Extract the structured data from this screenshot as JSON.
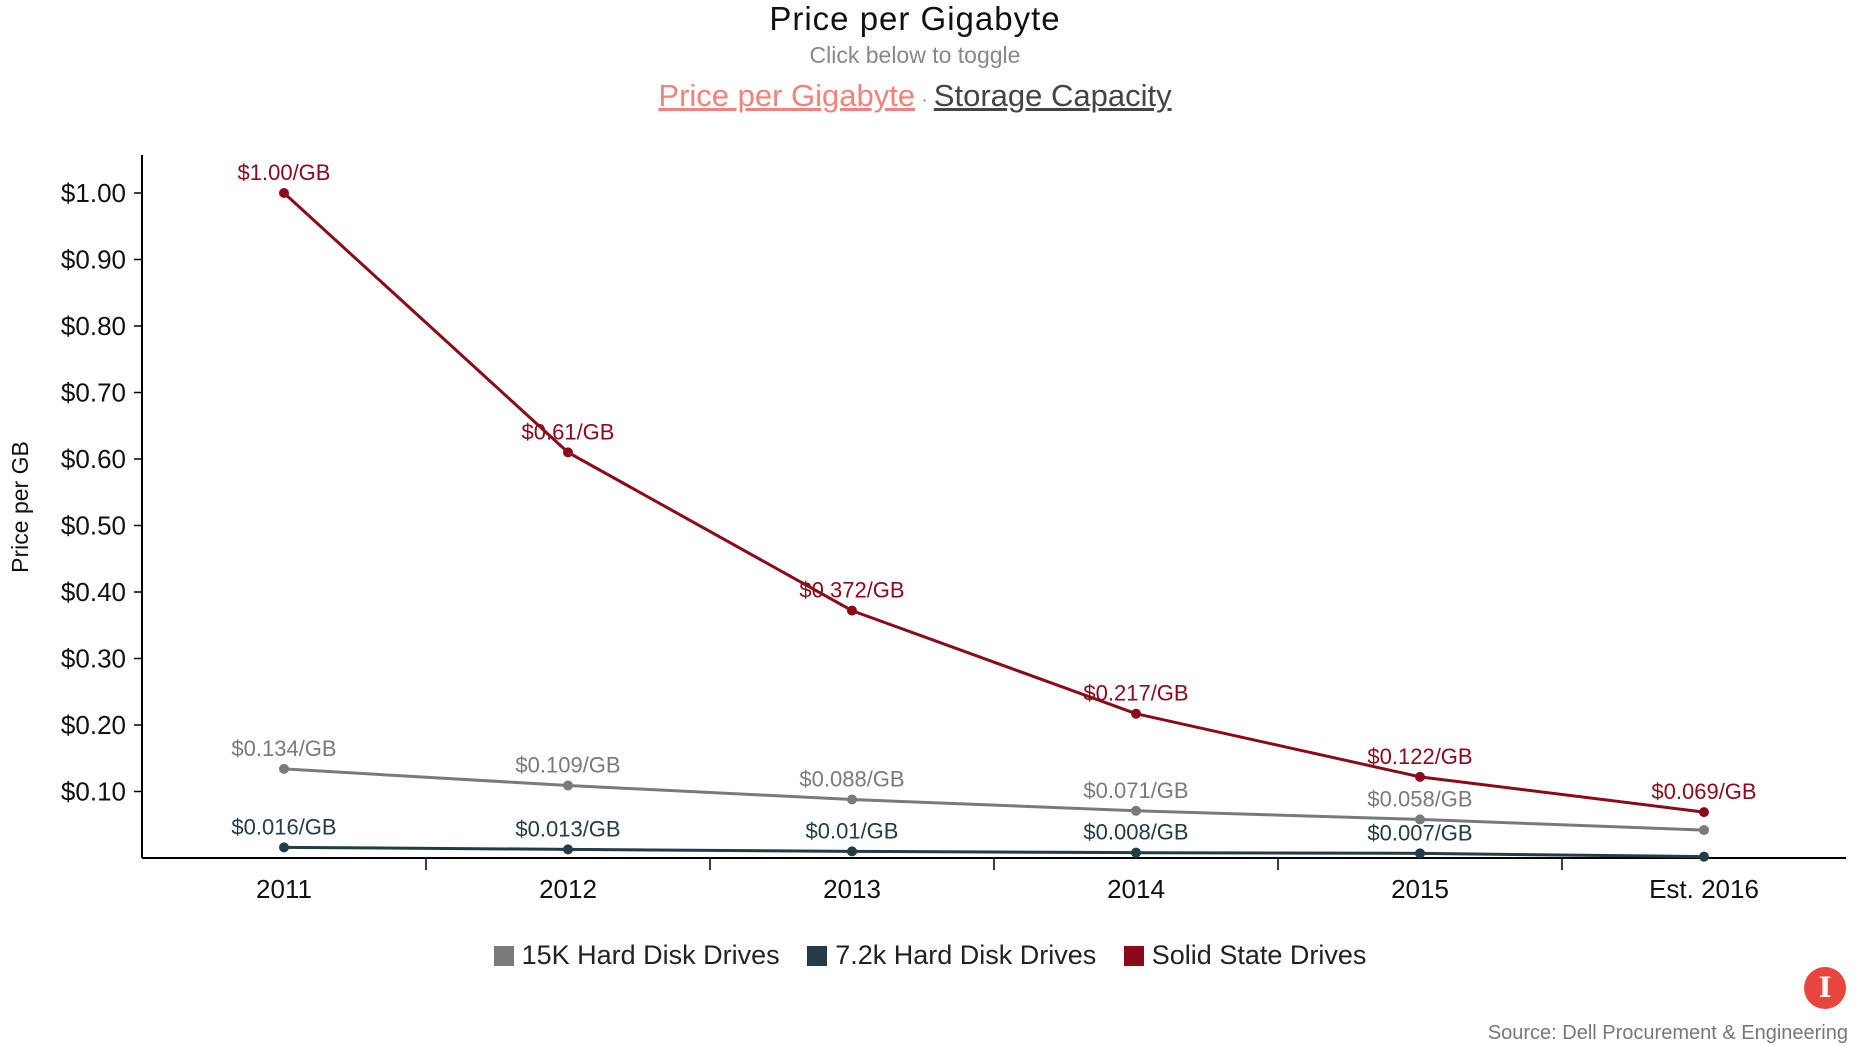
{
  "header": {
    "title": "Price per Gigabyte",
    "subtitle": "Click below to toggle",
    "toggles": [
      {
        "label": "Price per Gigabyte",
        "active": true
      },
      {
        "label": "Storage Capacity",
        "active": false
      }
    ],
    "separator": "·"
  },
  "chart_data": {
    "type": "line",
    "title": "Price per Gigabyte",
    "ylabel": "Price per GB",
    "xlabel": "",
    "categories": [
      "2011",
      "2012",
      "2013",
      "2014",
      "2015",
      "Est. 2016"
    ],
    "ylim": [
      0,
      1.05
    ],
    "yticks": [
      0.1,
      0.2,
      0.3,
      0.4,
      0.5,
      0.6,
      0.7,
      0.8,
      0.9,
      1.0
    ],
    "ytick_labels": [
      "$0.10",
      "$0.20",
      "$0.30",
      "$0.40",
      "$0.50",
      "$0.60",
      "$0.70",
      "$0.80",
      "$0.90",
      "$1.00"
    ],
    "grid": false,
    "legend_position": "bottom",
    "series": [
      {
        "name": "15K Hard Disk Drives",
        "color": "#7a7a7a",
        "values": [
          0.134,
          0.109,
          0.088,
          0.071,
          0.058,
          0.042
        ],
        "labels": [
          "$0.134/GB",
          "$0.109/GB",
          "$0.088/GB",
          "$0.071/GB",
          "$0.058/GB",
          ""
        ]
      },
      {
        "name": "7.2k Hard Disk Drives",
        "color": "#243b48",
        "values": [
          0.016,
          0.013,
          0.01,
          0.008,
          0.007,
          0.002
        ],
        "labels": [
          "$0.016/GB",
          "$0.013/GB",
          "$0.01/GB",
          "$0.008/GB",
          "$0.007/GB",
          ""
        ]
      },
      {
        "name": "Solid State Drives",
        "color": "#8b0a1a",
        "values": [
          1.0,
          0.61,
          0.372,
          0.217,
          0.122,
          0.069
        ],
        "labels": [
          "$1.00/GB",
          "$0.61/GB",
          "$0.372/GB",
          "$0.217/GB",
          "$0.122/GB",
          "$0.069/GB"
        ]
      }
    ]
  },
  "footer": {
    "source": "Source: Dell Procurement & Engineering",
    "logo_letter": "I"
  }
}
